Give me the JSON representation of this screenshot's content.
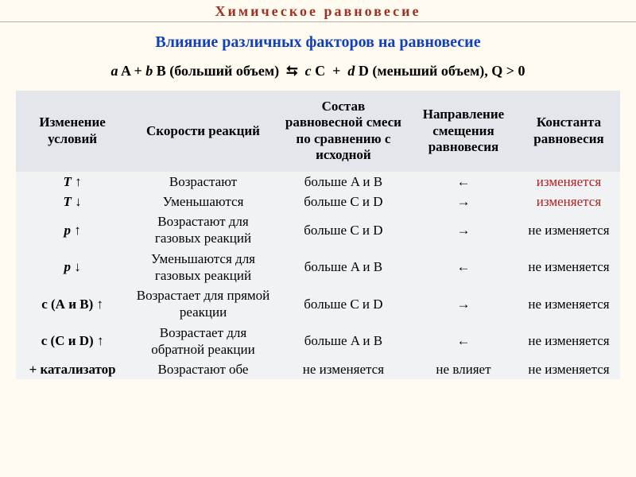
{
  "page_title": "Химическое равновесие",
  "subtitle": "Влияние различных факторов на равновесие",
  "equation_html": "<span class='it'>a</span> A + <span class='it'>b</span> B (больший объем)&nbsp;&nbsp;⮀&nbsp;&nbsp;<span class='it'>c</span> C&nbsp; +&nbsp; <span class='it'>d</span> D (меньший объем), Q &gt; 0",
  "columns": [
    "Изменение условий",
    "Скорости реакций",
    "Состав равновесной смеси по сравнению с исходной",
    "Направление смещения равновесия",
    "Константа равновесия"
  ],
  "col_widths": [
    "140px",
    "195px",
    "170px",
    "130px",
    "125px"
  ],
  "rows": [
    {
      "cond": "<span class='it'>T</span> ↑",
      "speed": "Возрастают",
      "mix": "больше A и B",
      "dir": "←",
      "k": "изменяется",
      "k_red": true
    },
    {
      "cond": "<span class='it'>T</span> ↓",
      "speed": "Уменьшаются",
      "mix": "больше C и D",
      "dir": "→",
      "k": "изменяется",
      "k_red": true
    },
    {
      "cond": "<span class='it'>p</span> ↑",
      "speed": "Возрастают для газовых реакций",
      "mix": "больше C и D",
      "dir": "→",
      "k": "не изменяется",
      "k_red": false
    },
    {
      "cond": "<span class='it'>p</span> ↓",
      "speed": "Уменьшаются для газовых реакций",
      "mix": "больше A и B",
      "dir": "←",
      "k": "не изменяется",
      "k_red": false
    },
    {
      "cond": "<b>c</b> (<b>A</b> и <b>B</b>) ↑",
      "speed": "Возрастает для прямой реакции",
      "mix": "больше C и D",
      "dir": "→",
      "k": "не изменяется",
      "k_red": false
    },
    {
      "cond": "<b>c</b> (<b>C</b> и <b>D</b>) ↑",
      "speed": "Возрастает для обратной реакции",
      "mix": "больше A и B",
      "dir": "←",
      "k": "не изменяется",
      "k_red": false
    },
    {
      "cond": "+ <b>катализатор</b>",
      "speed": "Возрастают обе",
      "mix": "не изменяется",
      "dir": "не влияет",
      "k": "не изменяется",
      "k_red": false
    }
  ],
  "colors": {
    "page_bg": "#fffbf0",
    "title": "#a03020",
    "subtitle": "#1040c0",
    "thead_bg": "#e3e6eb",
    "tbody_bg": "#f1f2f4",
    "accent_red": "#b02020"
  }
}
